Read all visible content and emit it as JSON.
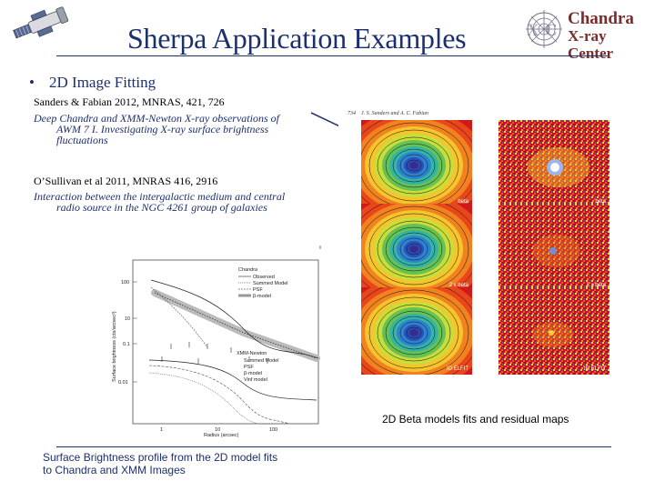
{
  "slide": {
    "title": "Sherpa Application Examples",
    "logo": {
      "line1": "Chandra",
      "line2": "X-ray Center"
    },
    "bullet": {
      "marker": "•",
      "text": "2D Image Fitting"
    },
    "refs": [
      {
        "citation": "Sanders & Fabian 2012, MNRAS, 421, 726",
        "desc_line1": "Deep Chandra and XMM-Newton X-ray observations of",
        "desc_line2": "AWM 7  I. Investigating X-ray surface brightness",
        "desc_line3": "fluctuations"
      },
      {
        "citation": "O’Sullivan et al 2011, MNRAS 416, 2916",
        "desc_line1": "Interaction between the intergalactic medium and central",
        "desc_line2": "radio source in the NGC 4261 group of galaxies"
      }
    ],
    "maps": {
      "header_page": "734",
      "header_authors": "J. S. Sanders and A. C. Fabian",
      "labels": [
        "beta",
        "beta",
        "2 x beta",
        "2 x beta",
        "ID ELFIT",
        "ID ELFIT"
      ],
      "caption": "2D Beta models fits and residual maps"
    },
    "profile": {
      "legend_title": "Chandra",
      "legend_items": [
        "Observed",
        "Summed Model",
        "PSF",
        "β-model"
      ],
      "legend2_title": "XMM-Newton",
      "legend2_items": [
        "Summed Model",
        "PSF",
        "β-model",
        "Vinf model"
      ],
      "xlabel": "Radius (arcsec)",
      "ylabel": "Surface brightness (cts/arcsec²)",
      "yticks": [
        "100",
        "10",
        "0.1",
        "0.01"
      ],
      "xticks": [
        "1",
        "10",
        "100"
      ],
      "caption_line1": "Surface Brightness profile from the 2D model fits",
      "caption_line2": "to Chandra and XMM Images"
    },
    "colors": {
      "title": "#1c2f6e",
      "logo_text": "#7a2d2a",
      "rule": "#1c2f6e"
    }
  }
}
